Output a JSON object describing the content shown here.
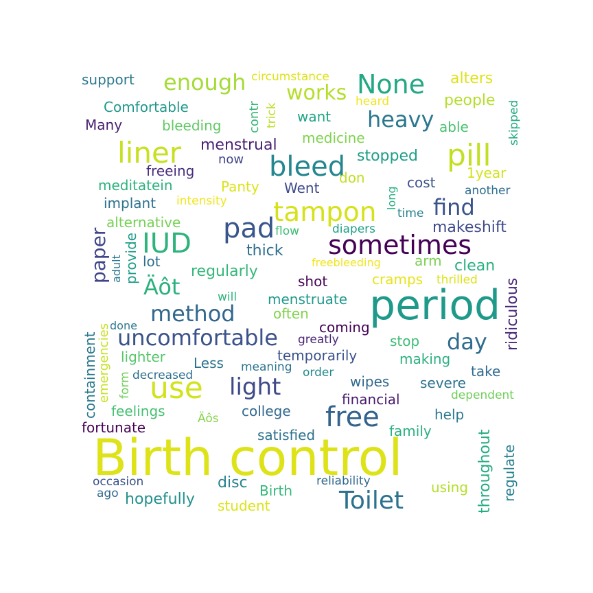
{
  "word_cloud": {
    "words": [
      {
        "text": "Birth control",
        "color": "#dde318"
      },
      {
        "text": "period",
        "color": "#1f9a8a"
      },
      {
        "text": "sometimes",
        "color": "#440154"
      },
      {
        "text": "use",
        "color": "#d2e21b"
      },
      {
        "text": "bleed",
        "color": "#24868e"
      },
      {
        "text": "pill",
        "color": "#c2df23"
      },
      {
        "text": "liner",
        "color": "#c7e020"
      },
      {
        "text": "IUD",
        "color": "#2eb37c"
      },
      {
        "text": "pad",
        "color": "#39568c"
      },
      {
        "text": "tampon",
        "color": "#d5e21a"
      },
      {
        "text": "free",
        "color": "#33638d"
      },
      {
        "text": "None",
        "color": "#22a884"
      },
      {
        "text": "uncomfortable",
        "color": "#3b528b"
      },
      {
        "text": "light",
        "color": "#3e4989"
      },
      {
        "text": "Toilet",
        "color": "#2c728e"
      },
      {
        "text": "heavy",
        "color": "#2a788e"
      },
      {
        "text": "works",
        "color": "#b5de2b"
      },
      {
        "text": "enough",
        "color": "#a5db36"
      },
      {
        "text": "find",
        "color": "#3b528b"
      },
      {
        "text": "Äôt",
        "color": "#2cb17e"
      },
      {
        "text": "method",
        "color": "#31678e"
      },
      {
        "text": "day",
        "color": "#2f6c8e"
      },
      {
        "text": "paper",
        "color": "#404588"
      },
      {
        "text": "ridiculous",
        "color": "#482677"
      },
      {
        "text": "throughout",
        "color": "#25ab82"
      },
      {
        "text": "containment",
        "color": "#2a788e"
      },
      {
        "text": "emergencies",
        "color": "#c8e020"
      },
      {
        "text": "regulate",
        "color": "#27808e"
      },
      {
        "text": "menstrual",
        "color": "#482173"
      },
      {
        "text": "support",
        "color": "#2a788e"
      },
      {
        "text": "Comfortable",
        "color": "#1f988b"
      },
      {
        "text": "Many",
        "color": "#481f70"
      },
      {
        "text": "bleeding",
        "color": "#5ec962"
      },
      {
        "text": "circumstance",
        "color": "#dde318"
      },
      {
        "text": "contr",
        "color": "#35b779"
      },
      {
        "text": "trick",
        "color": "#bddf26"
      },
      {
        "text": "want",
        "color": "#20a386"
      },
      {
        "text": "heard",
        "color": "#f1e51d"
      },
      {
        "text": "alters",
        "color": "#dde318"
      },
      {
        "text": "people",
        "color": "#b5de2b"
      },
      {
        "text": "able",
        "color": "#48c16e"
      },
      {
        "text": "skipped",
        "color": "#25ab82"
      },
      {
        "text": "medicine",
        "color": "#7fd34e"
      },
      {
        "text": "freeing",
        "color": "#472d7b"
      },
      {
        "text": "now",
        "color": "#404588"
      },
      {
        "text": "stopped",
        "color": "#1f9e89"
      },
      {
        "text": "1year",
        "color": "#d2e21b"
      },
      {
        "text": "meditatein",
        "color": "#2db27d"
      },
      {
        "text": "Panty",
        "color": "#dde318"
      },
      {
        "text": "Went",
        "color": "#3e4989"
      },
      {
        "text": "don",
        "color": "#c2df23"
      },
      {
        "text": "long",
        "color": "#2ab07f"
      },
      {
        "text": "cost",
        "color": "#3b528b"
      },
      {
        "text": "another",
        "color": "#2e6e8e"
      },
      {
        "text": "implant",
        "color": "#2c728e"
      },
      {
        "text": "intensity",
        "color": "#f1e51d"
      },
      {
        "text": "time",
        "color": "#26828e"
      },
      {
        "text": "alternative",
        "color": "#75d054"
      },
      {
        "text": "flow",
        "color": "#3dbc74"
      },
      {
        "text": "diapers",
        "color": "#1fa088"
      },
      {
        "text": "makeshift",
        "color": "#3e4989"
      },
      {
        "text": "provide",
        "color": "#1e9c89"
      },
      {
        "text": "thick",
        "color": "#2e6e8e"
      },
      {
        "text": "lot",
        "color": "#2d708e"
      },
      {
        "text": "adult",
        "color": "#2a788e"
      },
      {
        "text": "freebleeding",
        "color": "#f1e51d"
      },
      {
        "text": "arm",
        "color": "#7ad151"
      },
      {
        "text": "clean",
        "color": "#2ab07f"
      },
      {
        "text": "regularly",
        "color": "#35b779"
      },
      {
        "text": "shot",
        "color": "#440154"
      },
      {
        "text": "cramps",
        "color": "#e7e419"
      },
      {
        "text": "thrilled",
        "color": "#dde318"
      },
      {
        "text": "will",
        "color": "#2db27d"
      },
      {
        "text": "menstruate",
        "color": "#1f988b"
      },
      {
        "text": "often",
        "color": "#7fd34e"
      },
      {
        "text": "done",
        "color": "#2a788e"
      },
      {
        "text": "coming",
        "color": "#440154"
      },
      {
        "text": "greatly",
        "color": "#482475"
      },
      {
        "text": "stop",
        "color": "#3dbc74"
      },
      {
        "text": "temporarily",
        "color": "#3b528b"
      },
      {
        "text": "lighter",
        "color": "#54c568"
      },
      {
        "text": "making",
        "color": "#2ab07f"
      },
      {
        "text": "form",
        "color": "#6ece58"
      },
      {
        "text": "Less",
        "color": "#2c728e"
      },
      {
        "text": "meaning",
        "color": "#2c728e"
      },
      {
        "text": "order",
        "color": "#238a8d"
      },
      {
        "text": "take",
        "color": "#30698e"
      },
      {
        "text": "decreased",
        "color": "#2d708e"
      },
      {
        "text": "wipes",
        "color": "#31688e"
      },
      {
        "text": "severe",
        "color": "#2c728e"
      },
      {
        "text": "financial",
        "color": "#481b6d"
      },
      {
        "text": "dependent",
        "color": "#6ece58"
      },
      {
        "text": "feelings",
        "color": "#44bf70"
      },
      {
        "text": "college",
        "color": "#31688e"
      },
      {
        "text": "help",
        "color": "#2a788e"
      },
      {
        "text": "Äôs",
        "color": "#84d44b"
      },
      {
        "text": "fortunate",
        "color": "#440154"
      },
      {
        "text": "satisfied",
        "color": "#2c728e"
      },
      {
        "text": "family",
        "color": "#2ab07f"
      },
      {
        "text": "occasion",
        "color": "#3b528b"
      },
      {
        "text": "reliability",
        "color": "#31688e"
      },
      {
        "text": "ago",
        "color": "#31688e"
      },
      {
        "text": "disc",
        "color": "#26828e"
      },
      {
        "text": "Birth",
        "color": "#35b779"
      },
      {
        "text": "using",
        "color": "#b5de2b"
      },
      {
        "text": "hopefully",
        "color": "#21918c"
      },
      {
        "text": "student",
        "color": "#dde318"
      }
    ]
  }
}
